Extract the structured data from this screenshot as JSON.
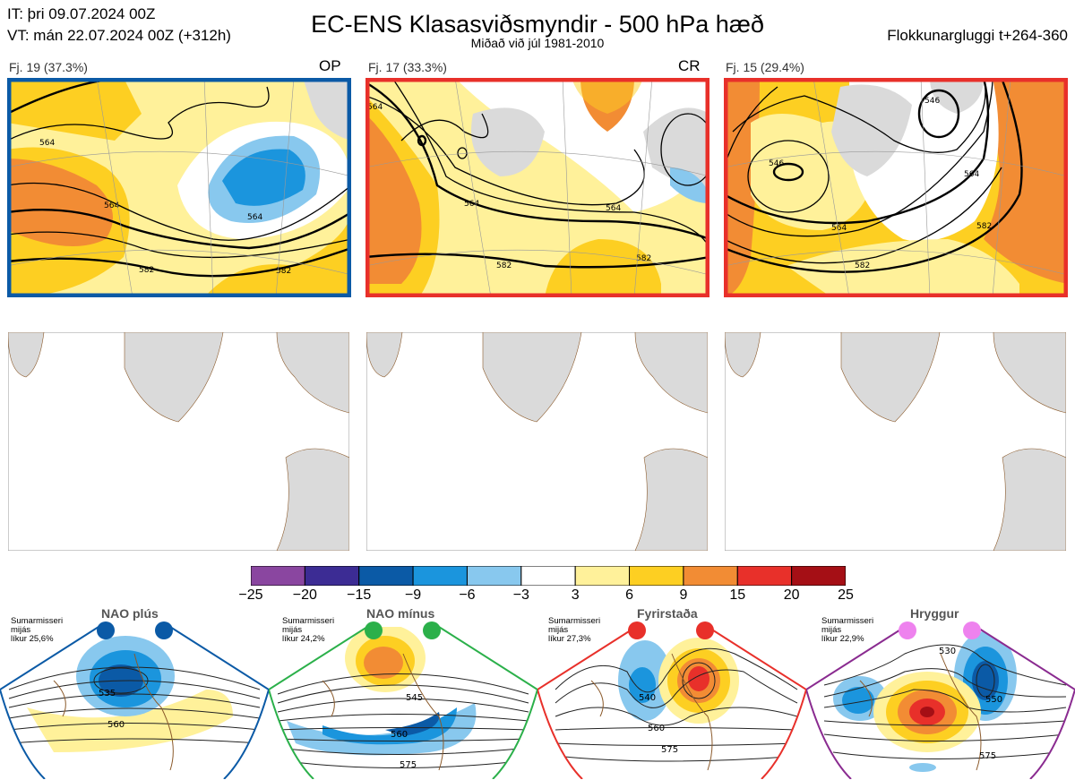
{
  "header": {
    "it_line": "IT: þri 09.07.2024 00Z",
    "vt_line": "VT: mán 22.07.2024 00Z  (+312h)",
    "title": "EC-ENS Klasasviðsmyndir - 500 hPa hæð",
    "subtitle": "Miðað við júl 1981-2010",
    "window": "Flokkunargluggi t+264-360"
  },
  "clusters": [
    {
      "label": "Fj. 19 (37.3%)",
      "tag": "OP",
      "border_color": "#0b5aa6",
      "contour_labels": [
        "564",
        "564",
        "582",
        "582",
        "564"
      ]
    },
    {
      "label": "Fj. 17 (33.3%)",
      "tag": "CR",
      "border_color": "#e8302a",
      "contour_labels": [
        "564",
        "564",
        "582",
        "582",
        "564"
      ]
    },
    {
      "label": "Fj. 15 (29.4%)",
      "tag": "",
      "border_color": "#e8302a",
      "contour_labels": [
        "546",
        "546",
        "564",
        "582",
        "564",
        "582"
      ]
    }
  ],
  "colorbar": {
    "ticks": [
      "−25",
      "−20",
      "−15",
      "−9",
      "−6",
      "−3",
      "3",
      "6",
      "9",
      "15",
      "20",
      "25"
    ],
    "colors": [
      "#8a46a0",
      "#3c2c94",
      "#0b5aa6",
      "#1b95dd",
      "#88c8ee",
      "#ffffff",
      "#fff19a",
      "#fdcf22",
      "#f28c34",
      "#e8302a",
      "#a50f15"
    ]
  },
  "regimes": [
    {
      "name": "NAO plús",
      "note": [
        "Sumarmisseri",
        "mijás",
        "líkur 25,6%"
      ],
      "dot_color": "#0b5aa6",
      "frame_color": "#0b5aa6",
      "labels": [
        "535",
        "560"
      ]
    },
    {
      "name": "NAO mínus",
      "note": [
        "Sumarmisseri",
        "mijás",
        "líkur 24,2%"
      ],
      "dot_color": "#2bb04a",
      "frame_color": "#2bb04a",
      "labels": [
        "545",
        "560",
        "575"
      ]
    },
    {
      "name": "Fyrirstaða",
      "note": [
        "Sumarmisseri",
        "mijás",
        "líkur 27,3%"
      ],
      "dot_color": "#e8302a",
      "frame_color": "#e8302a",
      "labels": [
        "540",
        "560",
        "575"
      ]
    },
    {
      "name": "Hryggur",
      "note": [
        "Sumarmisseri",
        "mijás",
        "líkur 22,9%"
      ],
      "dot_color": "#ee82ee",
      "frame_color": "#8a2b90",
      "labels": [
        "530",
        "550",
        "575"
      ]
    }
  ]
}
